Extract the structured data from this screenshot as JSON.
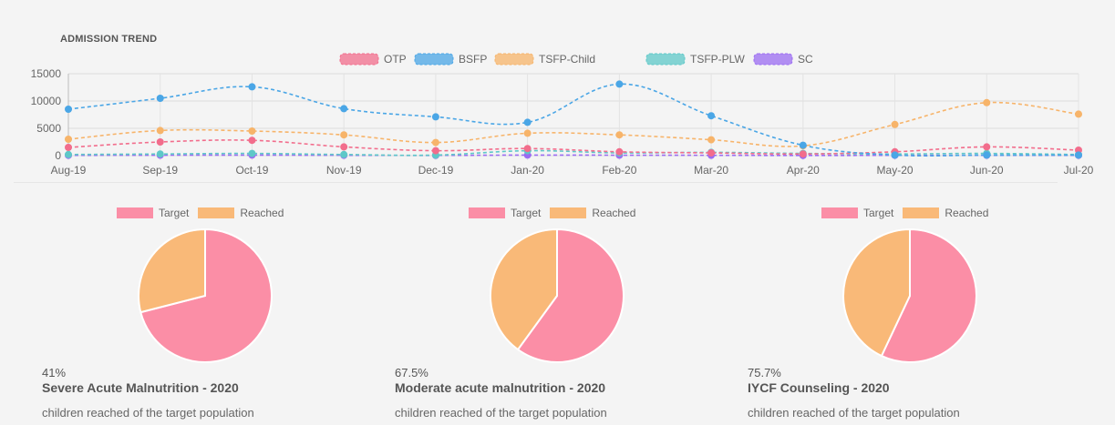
{
  "header": {
    "title": "ADMISSION TREND"
  },
  "colors": {
    "OTP": "#f26d8c",
    "BSFP": "#4aa6e6",
    "TSFP-Child": "#f7b46a",
    "TSFP-PLW": "#5ec8c8",
    "SC": "#9b6cf2",
    "target": "#fb8ea6",
    "reached": "#f9b978"
  },
  "chart_data": {
    "type": "line",
    "x": [
      "Aug-19",
      "Sep-19",
      "Oct-19",
      "Nov-19",
      "Dec-19",
      "Jan-20",
      "Feb-20",
      "Mar-20",
      "Apr-20",
      "May-20",
      "Jun-20",
      "Jul-20"
    ],
    "ylim": [
      0,
      15000
    ],
    "yticks": [
      "0",
      "5000",
      "10000",
      "15000"
    ],
    "legend_position": "top",
    "series": [
      {
        "name": "OTP",
        "values": [
          1500,
          2500,
          2800,
          1600,
          900,
          1300,
          700,
          500,
          300,
          700,
          1600,
          1000
        ]
      },
      {
        "name": "BSFP",
        "values": [
          8500,
          10500,
          12600,
          8600,
          7100,
          6100,
          13100,
          7300,
          1900,
          100,
          100,
          100
        ]
      },
      {
        "name": "TSFP-Child",
        "values": [
          3000,
          4600,
          4500,
          3800,
          2400,
          4100,
          3800,
          2900,
          1800,
          5700,
          9700,
          7600
        ]
      },
      {
        "name": "TSFP-PLW",
        "values": [
          200,
          300,
          400,
          200,
          100,
          900,
          500,
          600,
          400,
          300,
          400,
          200
        ]
      },
      {
        "name": "SC",
        "values": [
          50,
          80,
          100,
          60,
          40,
          100,
          80,
          60,
          30,
          50,
          60,
          50
        ]
      }
    ]
  },
  "pie_legend": {
    "target": "Target",
    "reached": "Reached"
  },
  "pies": [
    {
      "target": 71,
      "reached": 29,
      "pct": "41%",
      "label": "Severe Acute Malnutrition - 2020",
      "sub": "children reached of the target population"
    },
    {
      "target": 60,
      "reached": 40,
      "pct": "67.5%",
      "label": "Moderate acute malnutrition - 2020",
      "sub": "children reached of the target population"
    },
    {
      "target": 57,
      "reached": 43,
      "pct": "75.7%",
      "label": "IYCF Counseling - 2020",
      "sub": "children reached of the target population"
    }
  ]
}
